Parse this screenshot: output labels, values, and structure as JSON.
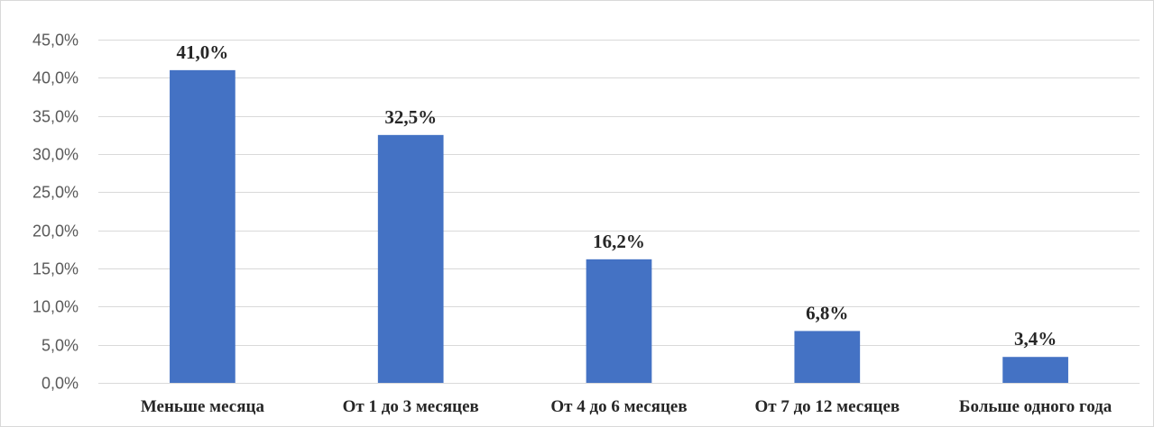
{
  "chart_data": {
    "type": "bar",
    "categories": [
      "Меньше месяца",
      "От 1 до 3 месяцев",
      "От 4 до 6 месяцев",
      "От 7 до 12 месяцев",
      "Больше одного года"
    ],
    "values": [
      41.0,
      32.5,
      16.2,
      6.8,
      3.4
    ],
    "data_labels": [
      "41,0%",
      "32,5%",
      "16,2%",
      "6,8%",
      "3,4%"
    ],
    "yticks": [
      0,
      5,
      10,
      15,
      20,
      25,
      30,
      35,
      40,
      45
    ],
    "ytick_labels": [
      "0,0%",
      "5,0%",
      "10,0%",
      "15,0%",
      "20,0%",
      "25,0%",
      "30,0%",
      "35,0%",
      "40,0%",
      "45,0%"
    ],
    "ylim": [
      0,
      45
    ],
    "title": "",
    "xlabel": "",
    "ylabel": "",
    "grid": true,
    "legend": "none",
    "bar_color": "#4472c4"
  }
}
